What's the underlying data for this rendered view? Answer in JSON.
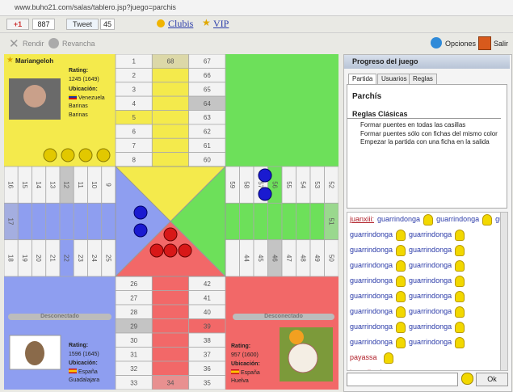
{
  "url": "www.buho21.com/salas/tablero.jsp?juego=parchis",
  "toolbar": {
    "gplus": "+1",
    "gplus_count": "887",
    "tweet": "Tweet",
    "tweet_count": "45",
    "clubis": "Clubis",
    "vip": "VIP"
  },
  "actions": {
    "rendir": "Rendir",
    "revancha": "Revancha",
    "opciones": "Opciones",
    "salir": "Salir"
  },
  "players": [
    {
      "name": "Mariangeloh",
      "rating_label": "Rating:",
      "rating": "1245 (1649)",
      "location_label": "Ubicación:",
      "country": "Venezuela",
      "region": "Barinas",
      "city": "Barinas"
    },
    {
      "status": "Desconectado",
      "rating_label": "Rating:",
      "rating": "1596 (1645)",
      "location_label": "Ubicación:",
      "country": "España",
      "city": "Guadalajara"
    },
    {
      "status": "Desconectado",
      "rating_label": "Rating:",
      "rating": "957 (1600)",
      "location_label": "Ubicación:",
      "country": "España",
      "city": "Huelva"
    }
  ],
  "board": {
    "top_left": [
      "1",
      "2",
      "3",
      "4",
      "5",
      "6",
      "7",
      "8"
    ],
    "top_mid": "68",
    "top_right": [
      "67",
      "66",
      "65",
      "64",
      "63",
      "62",
      "61",
      "60"
    ],
    "left_top": [
      "16",
      "15",
      "14",
      "13",
      "12",
      "11",
      "10",
      "9"
    ],
    "left_mid": "17",
    "left_bottom": [
      "18",
      "19",
      "20",
      "21",
      "22",
      "23",
      "24",
      "25"
    ],
    "right_top": [
      "59",
      "58",
      "57",
      "56",
      "55",
      "54",
      "53",
      "52"
    ],
    "right_mid": "51",
    "right_bottom": [
      "44",
      "45",
      "46",
      "47",
      "48",
      "49",
      "50"
    ],
    "bottom_left": [
      "26",
      "27",
      "28",
      "29",
      "30",
      "31",
      "32",
      "33"
    ],
    "bottom_mid": "34",
    "bottom_right": [
      "42",
      "41",
      "40",
      "39",
      "38",
      "37",
      "36",
      "35"
    ]
  },
  "panel": {
    "title": "Progreso del juego",
    "tabs": [
      "Partida",
      "Usuarios",
      "Reglas"
    ],
    "game": "Parchís",
    "rules_title": "Reglas Clásicas",
    "rules": [
      "Formar puentes en todas las casillas",
      "Formar puentes sólo con fichas del mismo color",
      "Empezar la partida con una ficha en la salida"
    ],
    "chat": [
      {
        "user": "juanxiii:",
        "words": [
          "guarrindonga",
          "guarrindonga",
          "guarrindonga"
        ]
      },
      {
        "words": [
          "guarrindonga",
          "guarrindonga"
        ]
      },
      {
        "words": [
          "guarrindonga",
          "guarrindonga"
        ]
      },
      {
        "words": [
          "guarrindonga",
          "guarrindonga"
        ]
      },
      {
        "words": [
          "guarrindonga",
          "guarrindonga"
        ]
      },
      {
        "words": [
          "guarrindonga",
          "guarrindonga"
        ]
      },
      {
        "words": [
          "guarrindonga",
          "guarrindonga"
        ]
      },
      {
        "words": [
          "guarrindonga",
          "guarrindonga"
        ]
      },
      {
        "words": [
          "guarrindonga",
          "guarrindonga"
        ]
      },
      {
        "user": "payassa",
        "words": []
      },
      {
        "user": "kamali:",
        "words": [
          "oleeeeeeeeeeeeeeeeee"
        ]
      }
    ],
    "send": "Ok"
  }
}
